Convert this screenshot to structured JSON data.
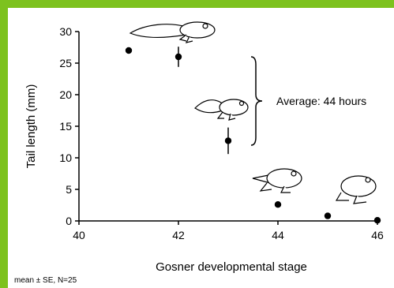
{
  "theme": {
    "border_color": "#7DC21E",
    "mark_color": "#000000"
  },
  "chart_data": {
    "type": "scatter",
    "title": "",
    "xlabel": "Gosner developmental stage",
    "ylabel": "Tail length (mm)",
    "xlim": [
      40,
      46
    ],
    "ylim": [
      0,
      30
    ],
    "xticks": [
      "40",
      "42",
      "44",
      "46"
    ],
    "yticks": [
      "0",
      "5",
      "10",
      "15",
      "20",
      "25",
      "30"
    ],
    "grid": false,
    "points": [
      {
        "x": 41,
        "y": 27,
        "se": 0
      },
      {
        "x": 42,
        "y": 26,
        "se": 1.6
      },
      {
        "x": 43,
        "y": 12.7,
        "se": 2.1
      },
      {
        "x": 44,
        "y": 2.6,
        "se": 0
      },
      {
        "x": 45,
        "y": 0.8,
        "se": 0
      },
      {
        "x": 46,
        "y": 0.1,
        "se": 0
      }
    ],
    "annotation": {
      "text": "Average: 44 hours",
      "y_range": [
        26,
        12
      ]
    },
    "footnote": "mean ± SE, N=25",
    "illustrations": [
      "tadpole-with-hindlegs-icon",
      "tadpole-with-four-legs-icon",
      "froglet-short-tail-icon",
      "froglet-icon"
    ]
  }
}
